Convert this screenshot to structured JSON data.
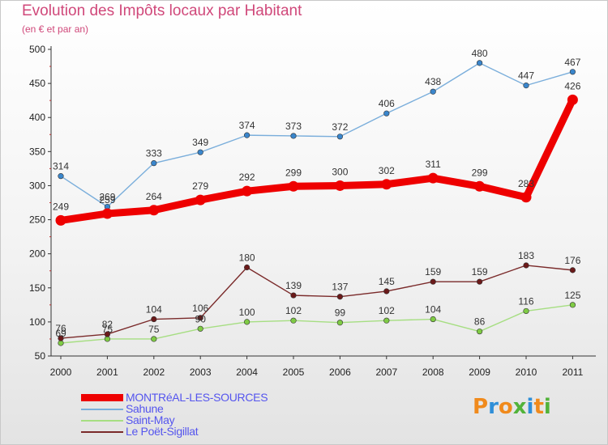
{
  "title": "Evolution des Impôts locaux par Habitant",
  "subtitle": "(en € et par an)",
  "logo": {
    "text": "Proxiti",
    "colors": [
      "#f08a1c",
      "#2f8fd8",
      "#f08a1c",
      "#52b33a",
      "#2f8fd8",
      "#f08a1c",
      "#52b33a"
    ]
  },
  "chart_data": {
    "type": "line",
    "title": "Evolution des Impôts locaux par Habitant",
    "subtitle": "(en € et par an)",
    "xlabel": "",
    "ylabel": "",
    "x": [
      "2000",
      "2001",
      "2002",
      "2003",
      "2004",
      "2005",
      "2006",
      "2007",
      "2008",
      "2009",
      "2010",
      "2011"
    ],
    "ylim": [
      50,
      500
    ],
    "yticks": [
      50,
      100,
      150,
      200,
      250,
      300,
      350,
      400,
      450,
      500
    ],
    "grid": false,
    "legend_position": "bottom-left",
    "series": [
      {
        "name": "MONTRéAL-LES-SOURCES",
        "color": "#ee0000",
        "marker": "#ee0000",
        "emphasis": true,
        "values": [
          249,
          259,
          264,
          279,
          292,
          299,
          300,
          302,
          311,
          299,
          283,
          426
        ]
      },
      {
        "name": "Sahune",
        "color": "#7aaedb",
        "marker": "#3a86cc",
        "emphasis": false,
        "values": [
          314,
          269,
          333,
          349,
          374,
          373,
          372,
          406,
          438,
          480,
          447,
          467
        ]
      },
      {
        "name": "Saint-May",
        "color": "#a6de82",
        "marker": "#7fcb44",
        "emphasis": false,
        "values": [
          69,
          75,
          75,
          90,
          100,
          102,
          99,
          102,
          104,
          86,
          116,
          125
        ]
      },
      {
        "name": "Le Poët-Sigillat",
        "color": "#7a2a2a",
        "marker": "#6b1a1a",
        "emphasis": false,
        "values": [
          76,
          82,
          104,
          106,
          180,
          139,
          137,
          145,
          159,
          159,
          183,
          176
        ]
      }
    ]
  }
}
